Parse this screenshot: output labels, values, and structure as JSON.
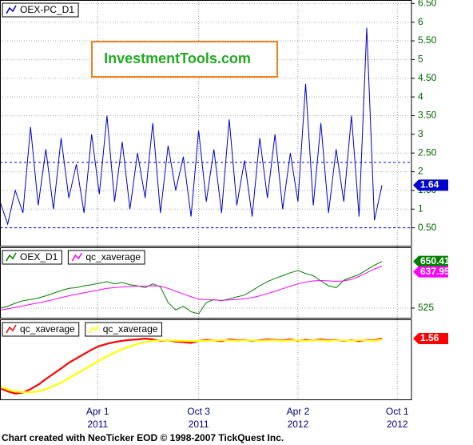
{
  "chart_data": [
    {
      "type": "line",
      "legend": true,
      "annotation": "InvestmentTools.com",
      "x": [
        "2010-10-04",
        "2010-10-18",
        "2010-11-01",
        "2010-11-15",
        "2010-11-29",
        "2010-12-13",
        "2010-12-27",
        "2011-01-10",
        "2011-01-24",
        "2011-02-07",
        "2011-02-21",
        "2011-03-07",
        "2011-03-21",
        "2011-04-04",
        "2011-04-18",
        "2011-05-02",
        "2011-05-16",
        "2011-05-30",
        "2011-06-13",
        "2011-06-27",
        "2011-07-11",
        "2011-07-25",
        "2011-08-08",
        "2011-08-22",
        "2011-09-05",
        "2011-09-19",
        "2011-10-03",
        "2011-10-17",
        "2011-10-31",
        "2011-11-14",
        "2011-11-28",
        "2011-12-12",
        "2011-12-26",
        "2012-01-09",
        "2012-01-23",
        "2012-02-06",
        "2012-02-20",
        "2012-03-05",
        "2012-03-19",
        "2012-04-02",
        "2012-04-16",
        "2012-04-30",
        "2012-05-14",
        "2012-05-28",
        "2012-06-11",
        "2012-06-25",
        "2012-07-09",
        "2012-07-23",
        "2012-08-06",
        "2012-08-20",
        "2012-09-03"
      ],
      "xlim": [
        "2010-10-04",
        "2012-10-27"
      ],
      "ylim": [
        0,
        6.55
      ],
      "yticks": [
        {
          "value": 0.5,
          "label": "0.50"
        },
        1,
        {
          "value": 1.5,
          "label": "1.50"
        },
        2,
        {
          "value": 2.5,
          "label": "2.50"
        },
        3,
        {
          "value": 3.5,
          "label": "3.50"
        },
        4,
        {
          "value": 4.5,
          "label": "4.50"
        },
        5,
        {
          "value": 5.5,
          "label": "5.50"
        },
        6,
        {
          "value": 6.5,
          "label": "6.50"
        }
      ],
      "reference_lines": [
        2.25,
        0.5
      ],
      "series": [
        {
          "name": "OEX-PC_D1",
          "color": "#0000cc",
          "values": [
            1.2,
            0.6,
            1.5,
            0.9,
            3.2,
            1.1,
            2.6,
            1.0,
            2.9,
            1.3,
            2.2,
            0.9,
            3.0,
            1.4,
            3.5,
            1.2,
            2.8,
            1.0,
            2.5,
            1.3,
            3.3,
            0.9,
            2.7,
            1.5,
            2.4,
            0.8,
            3.1,
            1.2,
            2.6,
            0.9,
            3.4,
            1.1,
            2.3,
            0.8,
            2.9,
            1.3,
            3.0,
            1.0,
            2.5,
            1.2,
            4.35,
            1.1,
            3.3,
            0.9,
            2.6,
            1.2,
            3.5,
            0.8,
            5.85,
            0.7,
            1.64
          ]
        }
      ]
    },
    {
      "type": "line",
      "legend": true,
      "ylim": [
        497,
        684
      ],
      "yticks": [
        525
      ],
      "series": [
        {
          "name": "OEX_D1",
          "color": "#008000",
          "values": [
            525,
            530,
            538,
            545,
            548,
            552,
            558,
            565,
            572,
            578,
            580,
            585,
            588,
            592,
            596,
            590,
            594,
            588,
            585,
            580,
            590,
            582,
            540,
            520,
            530,
            515,
            510,
            540,
            548,
            545,
            550,
            555,
            560,
            572,
            585,
            596,
            605,
            612,
            620,
            626,
            618,
            612,
            598,
            585,
            580,
            600,
            608,
            615,
            628,
            640,
            650.41
          ]
        },
        {
          "name": "qc_xaverage",
          "color": "#ff00ff",
          "values": [
            520,
            523,
            527,
            531,
            535,
            539,
            543,
            548,
            553,
            558,
            562,
            566,
            570,
            574,
            578,
            580,
            582,
            583,
            584,
            584,
            585,
            584,
            578,
            570,
            563,
            556,
            549,
            548,
            547,
            546,
            547,
            548,
            550,
            553,
            558,
            564,
            570,
            577,
            584,
            590,
            595,
            598,
            599,
            598,
            597,
            598,
            602,
            610,
            620,
            630,
            637.95
          ]
        }
      ]
    },
    {
      "type": "line",
      "legend": true,
      "ylim": [
        1.42,
        1.6
      ],
      "series": [
        {
          "name": "qc_xaverage",
          "color": "#ff0000",
          "values": [
            1.447,
            1.44,
            1.435,
            1.437,
            1.445,
            1.455,
            1.468,
            1.48,
            1.492,
            1.505,
            1.515,
            1.525,
            1.535,
            1.543,
            1.548,
            1.552,
            1.555,
            1.557,
            1.558,
            1.56,
            1.558,
            1.555,
            1.556,
            1.553,
            1.552,
            1.55,
            1.555,
            1.557,
            1.556,
            1.554,
            1.558,
            1.556,
            1.557,
            1.555,
            1.556,
            1.558,
            1.557,
            1.556,
            1.558,
            1.555,
            1.557,
            1.556,
            1.558,
            1.556,
            1.557,
            1.555,
            1.556,
            1.554,
            1.557,
            1.556,
            1.56
          ]
        },
        {
          "name": "qc_xaverage",
          "color": "#ffff00",
          "values": [
            1.45,
            1.445,
            1.44,
            1.438,
            1.438,
            1.44,
            1.445,
            1.452,
            1.46,
            1.47,
            1.48,
            1.49,
            1.5,
            1.51,
            1.52,
            1.528,
            1.536,
            1.542,
            1.548,
            1.552,
            1.555,
            1.556,
            1.556,
            1.555,
            1.555,
            1.554,
            1.555,
            1.555,
            1.556,
            1.556,
            1.556,
            1.555,
            1.556,
            1.556,
            1.555,
            1.556,
            1.556,
            1.555,
            1.556,
            1.556,
            1.555,
            1.556,
            1.556,
            1.555,
            1.556,
            1.556,
            1.555,
            1.556,
            1.556,
            1.555,
            1.558
          ]
        }
      ],
      "xticks": [
        {
          "value": "2011-04-01",
          "label": "Apr 1",
          "year": "2011"
        },
        {
          "value": "2011-10-03",
          "label": "Oct 3",
          "year": "2011"
        },
        {
          "value": "2012-04-02",
          "label": "Apr 2",
          "year": "2012"
        },
        {
          "value": "2012-10-01",
          "label": "Oct 1",
          "year": "2012"
        }
      ]
    }
  ],
  "footer": "Chart created with NeoTicker EOD © 1998-2007 TickQuest Inc."
}
